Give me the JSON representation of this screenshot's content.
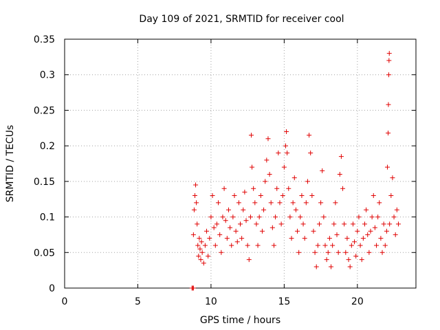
{
  "chart_data": {
    "type": "scatter",
    "title": "Day 109 of 2021, SRMTID for receiver cool",
    "xlabel": "GPS time / hours",
    "ylabel": "SRMTID / TECUs",
    "xlim": [
      0,
      24
    ],
    "ylim": [
      0,
      0.35
    ],
    "xticks": [
      0,
      5,
      10,
      15,
      20
    ],
    "yticks": [
      0,
      0.05,
      0.1,
      0.15,
      0.2,
      0.25,
      0.3,
      0.35
    ],
    "ytick_labels": [
      "0",
      "0.05",
      "0.1",
      "0.15",
      "0.2",
      "0.25",
      "0.3",
      "0.35"
    ],
    "grid": true,
    "marker": "+",
    "color": "#e00000",
    "series": [
      {
        "name": "SRMTID",
        "points": [
          [
            8.7,
            0.0
          ],
          [
            8.75,
            0.0
          ],
          [
            8.8,
            0.0
          ],
          [
            8.8,
            0.075
          ],
          [
            8.85,
            0.11
          ],
          [
            8.9,
            0.13
          ],
          [
            8.95,
            0.145
          ],
          [
            9.0,
            0.12
          ],
          [
            9.05,
            0.09
          ],
          [
            9.1,
            0.06
          ],
          [
            9.15,
            0.045
          ],
          [
            9.2,
            0.07
          ],
          [
            9.25,
            0.055
          ],
          [
            9.3,
            0.04
          ],
          [
            9.35,
            0.065
          ],
          [
            9.4,
            0.05
          ],
          [
            9.5,
            0.035
          ],
          [
            9.6,
            0.06
          ],
          [
            9.7,
            0.08
          ],
          [
            9.8,
            0.045
          ],
          [
            9.9,
            0.07
          ],
          [
            10.0,
            0.1
          ],
          [
            10.1,
            0.13
          ],
          [
            10.2,
            0.085
          ],
          [
            10.3,
            0.06
          ],
          [
            10.4,
            0.09
          ],
          [
            10.5,
            0.12
          ],
          [
            10.6,
            0.075
          ],
          [
            10.7,
            0.05
          ],
          [
            10.8,
            0.1
          ],
          [
            10.9,
            0.14
          ],
          [
            11.0,
            0.095
          ],
          [
            11.1,
            0.07
          ],
          [
            11.2,
            0.11
          ],
          [
            11.3,
            0.085
          ],
          [
            11.4,
            0.06
          ],
          [
            11.5,
            0.1
          ],
          [
            11.6,
            0.13
          ],
          [
            11.7,
            0.08
          ],
          [
            11.8,
            0.065
          ],
          [
            11.9,
            0.12
          ],
          [
            12.0,
            0.09
          ],
          [
            12.1,
            0.07
          ],
          [
            12.2,
            0.11
          ],
          [
            12.3,
            0.135
          ],
          [
            12.4,
            0.095
          ],
          [
            12.5,
            0.06
          ],
          [
            12.6,
            0.04
          ],
          [
            12.7,
            0.1
          ],
          [
            12.75,
            0.215
          ],
          [
            12.8,
            0.17
          ],
          [
            12.9,
            0.14
          ],
          [
            13.0,
            0.12
          ],
          [
            13.1,
            0.09
          ],
          [
            13.2,
            0.06
          ],
          [
            13.3,
            0.1
          ],
          [
            13.4,
            0.13
          ],
          [
            13.5,
            0.08
          ],
          [
            13.6,
            0.11
          ],
          [
            13.7,
            0.15
          ],
          [
            13.8,
            0.18
          ],
          [
            13.9,
            0.21
          ],
          [
            14.0,
            0.16
          ],
          [
            14.1,
            0.12
          ],
          [
            14.2,
            0.085
          ],
          [
            14.3,
            0.06
          ],
          [
            14.4,
            0.1
          ],
          [
            14.5,
            0.14
          ],
          [
            14.6,
            0.19
          ],
          [
            14.7,
            0.12
          ],
          [
            14.8,
            0.09
          ],
          [
            14.9,
            0.13
          ],
          [
            15.0,
            0.17
          ],
          [
            15.1,
            0.2
          ],
          [
            15.15,
            0.22
          ],
          [
            15.2,
            0.19
          ],
          [
            15.3,
            0.14
          ],
          [
            15.4,
            0.1
          ],
          [
            15.5,
            0.07
          ],
          [
            15.6,
            0.12
          ],
          [
            15.7,
            0.155
          ],
          [
            15.8,
            0.11
          ],
          [
            15.9,
            0.08
          ],
          [
            16.0,
            0.05
          ],
          [
            16.1,
            0.1
          ],
          [
            16.2,
            0.13
          ],
          [
            16.3,
            0.09
          ],
          [
            16.4,
            0.07
          ],
          [
            16.5,
            0.12
          ],
          [
            16.6,
            0.15
          ],
          [
            16.7,
            0.215
          ],
          [
            16.8,
            0.19
          ],
          [
            16.9,
            0.13
          ],
          [
            17.0,
            0.08
          ],
          [
            17.1,
            0.05
          ],
          [
            17.2,
            0.03
          ],
          [
            17.3,
            0.06
          ],
          [
            17.4,
            0.09
          ],
          [
            17.5,
            0.12
          ],
          [
            17.6,
            0.165
          ],
          [
            17.7,
            0.1
          ],
          [
            17.8,
            0.06
          ],
          [
            17.9,
            0.04
          ],
          [
            18.0,
            0.05
          ],
          [
            18.1,
            0.07
          ],
          [
            18.2,
            0.03
          ],
          [
            18.3,
            0.06
          ],
          [
            18.4,
            0.09
          ],
          [
            18.5,
            0.12
          ],
          [
            18.6,
            0.075
          ],
          [
            18.7,
            0.05
          ],
          [
            18.8,
            0.16
          ],
          [
            18.9,
            0.185
          ],
          [
            19.0,
            0.14
          ],
          [
            19.1,
            0.09
          ],
          [
            19.2,
            0.05
          ],
          [
            19.3,
            0.07
          ],
          [
            19.4,
            0.04
          ],
          [
            19.5,
            0.03
          ],
          [
            19.6,
            0.06
          ],
          [
            19.7,
            0.09
          ],
          [
            19.8,
            0.065
          ],
          [
            19.9,
            0.045
          ],
          [
            20.0,
            0.08
          ],
          [
            20.1,
            0.1
          ],
          [
            20.2,
            0.06
          ],
          [
            20.3,
            0.04
          ],
          [
            20.4,
            0.07
          ],
          [
            20.5,
            0.09
          ],
          [
            20.6,
            0.11
          ],
          [
            20.7,
            0.075
          ],
          [
            20.8,
            0.05
          ],
          [
            20.9,
            0.08
          ],
          [
            21.0,
            0.1
          ],
          [
            21.1,
            0.13
          ],
          [
            21.2,
            0.085
          ],
          [
            21.3,
            0.06
          ],
          [
            21.4,
            0.1
          ],
          [
            21.5,
            0.12
          ],
          [
            21.6,
            0.07
          ],
          [
            21.7,
            0.05
          ],
          [
            21.8,
            0.09
          ],
          [
            21.9,
            0.06
          ],
          [
            22.0,
            0.08
          ],
          [
            22.05,
            0.17
          ],
          [
            22.1,
            0.218
          ],
          [
            22.12,
            0.258
          ],
          [
            22.14,
            0.3
          ],
          [
            22.16,
            0.32
          ],
          [
            22.18,
            0.33
          ],
          [
            22.2,
            0.09
          ],
          [
            22.3,
            0.13
          ],
          [
            22.4,
            0.155
          ],
          [
            22.5,
            0.1
          ],
          [
            22.6,
            0.075
          ],
          [
            22.7,
            0.11
          ],
          [
            22.8,
            0.09
          ]
        ]
      }
    ]
  }
}
